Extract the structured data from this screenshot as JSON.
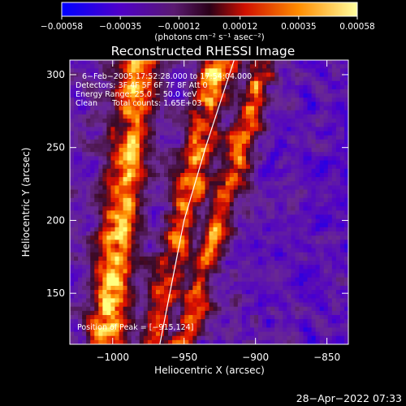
{
  "chart_data": {
    "type": "heatmap",
    "title": "Reconstructed RHESSI Image",
    "xlabel": "Heliocentric X (arcsec)",
    "ylabel": "Heliocentric Y (arcsec)",
    "xlim": [
      -1030,
      -835
    ],
    "ylim": [
      115,
      310
    ],
    "x_ticks": [
      -1000,
      -950,
      -900,
      -850
    ],
    "x_tick_labels": [
      "−1000",
      "−950",
      "−900",
      "−850"
    ],
    "y_ticks": [
      150,
      200,
      250,
      300
    ],
    "y_tick_labels": [
      "150",
      "200",
      "250",
      "300"
    ],
    "colorbar": {
      "min": -0.00058,
      "max": 0.00058,
      "ticks": [
        -0.00058,
        -0.00035,
        -0.00012,
        0.00012,
        0.00035,
        0.00058
      ],
      "tick_labels": [
        "−0.00058",
        "−0.00035",
        "−0.00012",
        "0.00012",
        "0.00035",
        "0.00058"
      ],
      "units_label": "(photons cm⁻² s⁻¹ asec⁻²)"
    },
    "annotations": [
      "6−Feb−2005 17:52:28.000 to 17:54:04.000",
      "Detectors: 3F 4F 5F 6F 7F 8F Att 0",
      "Energy Range: 25.0 − 50.0 keV",
      "Clean      Total counts: 1.65E+03"
    ],
    "peak_label": "Position of Peak = [−915,124]",
    "peak": [
      -915,
      124
    ],
    "limb_curve": [
      [
        -967,
        115
      ],
      [
        -960,
        150
      ],
      [
        -950,
        200
      ],
      [
        -935,
        250
      ],
      [
        -920,
        295
      ],
      [
        -915,
        310
      ]
    ],
    "grid": false,
    "colormap": [
      "#0000ff",
      "#5000c8",
      "#6a2a90",
      "#3a0a25",
      "#e01000",
      "#ff9000",
      "#ffff80"
    ]
  },
  "timestamp": "28−Apr−2022 07:33"
}
